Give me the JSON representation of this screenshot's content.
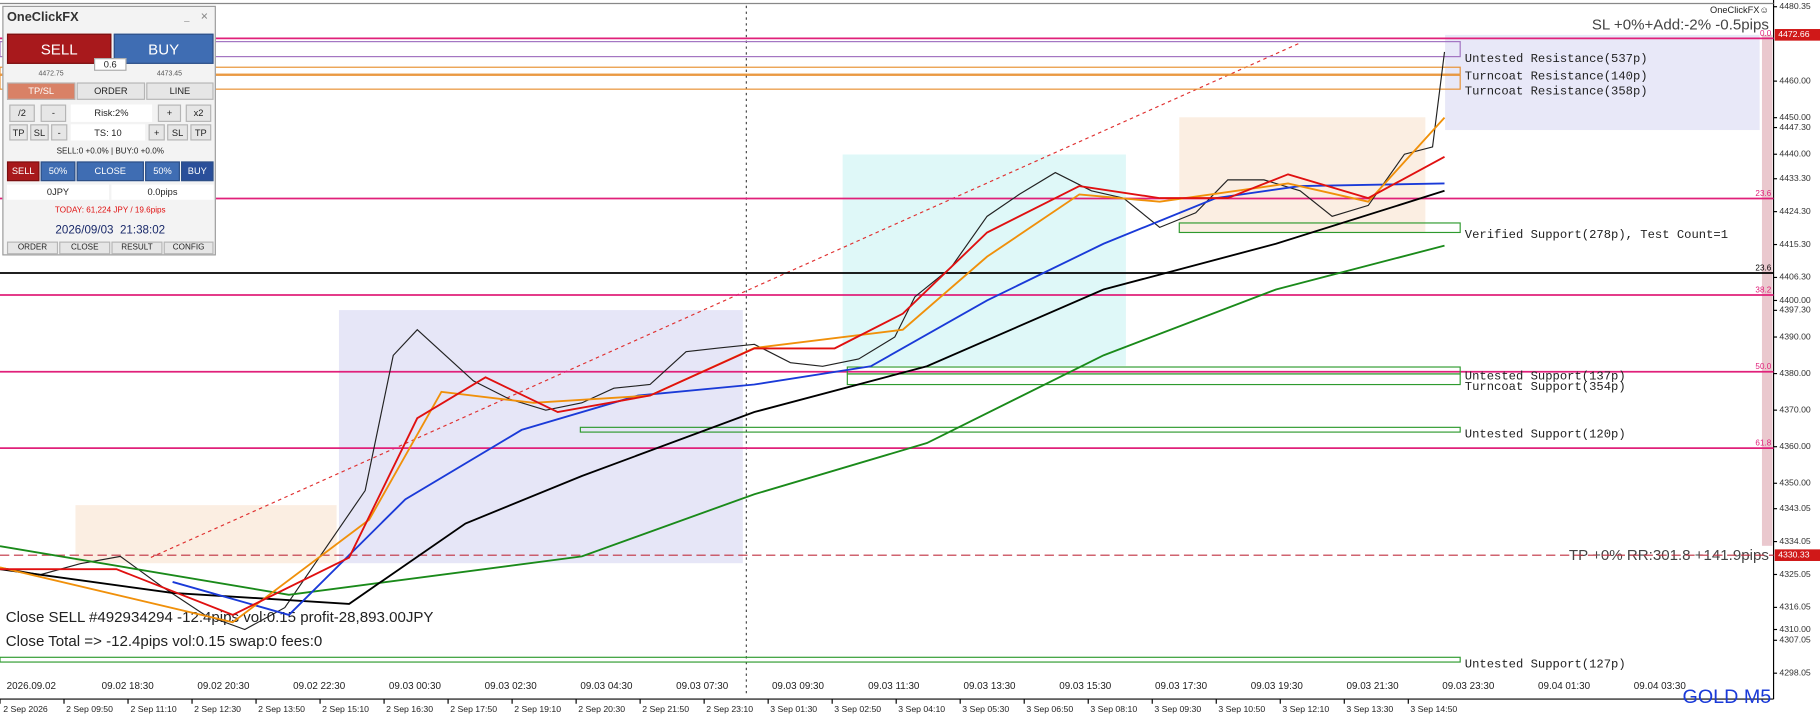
{
  "panel": {
    "title": "OneClickFX",
    "sell": "SELL",
    "buy": "BUY",
    "lot": "0.6",
    "bid": "4472.75",
    "ask": "4473.45",
    "tabs": [
      "TP/SL",
      "ORDER",
      "LINE"
    ],
    "risk_row": [
      "/2",
      "-",
      "Risk:2%",
      "+",
      "x2"
    ],
    "ts_row": [
      "TP",
      "SL",
      "-",
      "TS: 10",
      "+",
      "SL",
      "TP"
    ],
    "positions": "SELL:0 +0.0% | BUY:0 +0.0%",
    "close_row": [
      "SELL",
      "50%",
      "CLOSE",
      "50%",
      "BUY"
    ],
    "profit": "0JPY",
    "pips": "0.0pips",
    "today": "TODAY: 61,224 JPY / 19.6pips",
    "datetime": "2026/09/03  21:38:02",
    "menu": [
      "ORDER",
      "CLOSE",
      "RESULT",
      "CONFIG"
    ]
  },
  "chart_data": {
    "type": "line",
    "logo": "OneClickFX☺",
    "symbol": "GOLD M5",
    "sl_text": "SL +0%+Add:-2% -0.5pips",
    "tp_text": "TP +0% RR:301.8 +141.9pips",
    "close_lines": [
      "Close SELL #492934294 -12.4pips vol:0.15 profit-28,893.00JPY",
      "Close Total => -12.4pips vol:0.15 swap:0 fees:0"
    ],
    "ylim": [
      4291.6,
      4480.6
    ],
    "xlim": [
      0,
      442
    ],
    "yticks": [
      4480.35,
      {
        "value": 4460,
        "label": "4460.00"
      },
      {
        "value": 4450,
        "label": "4450.00"
      },
      {
        "value": 4447.3,
        "label": "4447.30"
      },
      {
        "value": 4440,
        "label": "4440.00"
      },
      {
        "value": 4433.3,
        "label": "4433.30"
      },
      {
        "value": 4424.3,
        "label": "4424.30"
      },
      {
        "value": 4415.3,
        "label": "4415.30"
      },
      {
        "value": 4406.3,
        "label": "4406.30"
      },
      {
        "value": 4400,
        "label": "4400.00"
      },
      {
        "value": 4397.3,
        "label": "4397.30"
      },
      {
        "value": 4390,
        "label": "4390.00"
      },
      {
        "value": 4380,
        "label": "4380.00"
      },
      {
        "value": 4370,
        "label": "4370.00"
      },
      {
        "value": 4360,
        "label": "4360.00"
      },
      {
        "value": 4350,
        "label": "4350.00"
      },
      {
        "value": 4343.05,
        "label": "4343.05"
      },
      {
        "value": 4334.05,
        "label": "4334.05"
      },
      {
        "value": 4325.05,
        "label": "4325.05"
      },
      {
        "value": 4316.05,
        "label": "4316.05"
      },
      {
        "value": 4310,
        "label": "4310.00"
      },
      {
        "value": 4307.05,
        "label": "4307.05"
      },
      {
        "value": 4298.05,
        "label": "4298.05"
      }
    ],
    "price_tags": [
      4472.66,
      4330.33
    ],
    "x_labels_top": [
      "2026.09.02",
      "09.02 18:30",
      "09.02 20:30",
      "09.02 22:30",
      "09.03 00:30",
      "09.03 02:30",
      "09.03 04:30",
      "09.03 07:30",
      "09.03 09:30",
      "09.03 11:30",
      "09.03 13:30",
      "09.03 15:30",
      "09.03 17:30",
      "09.03 19:30",
      "09.03 21:30",
      "09.03 23:30",
      "09.04 01:30",
      "09.04 03:30"
    ],
    "x_labels_bottom": [
      "2 Sep 2026",
      "2 Sep 09:50",
      "2 Sep 11:10",
      "2 Sep 12:30",
      "2 Sep 13:50",
      "2 Sep 15:10",
      "2 Sep 16:30",
      "2 Sep 17:50",
      "2 Sep 19:10",
      "2 Sep 20:30",
      "2 Sep 21:50",
      "2 Sep 23:10",
      "3 Sep 01:30",
      "3 Sep 02:50",
      "3 Sep 04:10",
      "3 Sep 05:30",
      "3 Sep 06:50",
      "3 Sep 08:10",
      "3 Sep 09:30",
      "3 Sep 10:50",
      "3 Sep 12:10",
      "3 Sep 13:30",
      "3 Sep 14:50"
    ],
    "fib_levels": [
      {
        "label": "0.0",
        "price": 4471.7,
        "color": "#e0207a"
      },
      {
        "label": "23.6",
        "price": 4427.9,
        "color": "#e0207a"
      },
      {
        "label": "23.6",
        "price": 4407.5,
        "color": "#000000"
      },
      {
        "label": "38.2",
        "price": 4401.5,
        "color": "#e0207a"
      },
      {
        "label": "50.0",
        "price": 4380.5,
        "color": "#e0207a"
      },
      {
        "label": "61.8",
        "price": 4359.6,
        "color": "#e0207a"
      }
    ],
    "zones": [
      {
        "label": "Untested Resistance(537p)",
        "top": 4470.8,
        "bottom": 4466.7,
        "color": "#a070c0"
      },
      {
        "label": "Turncoat Resistance(140p)",
        "top": 4463.8,
        "bottom": 4461.9,
        "color": "#e89030"
      },
      {
        "label": "Turncoat Resistance(358p)",
        "top": 4461.6,
        "bottom": 4457.8,
        "color": "#e89030"
      },
      {
        "label": "Verified Support(278p), Test Count=1",
        "top": 4421.2,
        "bottom": 4418.6,
        "color": "#2e9a2e"
      },
      {
        "label": "Untested Support(137p)",
        "top": 4381.8,
        "bottom": 4379.9,
        "color": "#2e9a2e"
      },
      {
        "label": "Turncoat Support(354p)",
        "top": 4379.9,
        "bottom": 4377.0,
        "color": "#2e9a2e"
      },
      {
        "label": "Untested Support(120p)",
        "top": 4365.3,
        "bottom": 4364.0,
        "color": "#2e9a2e"
      },
      {
        "label": "Untested Support(127p)",
        "top": 4302.4,
        "bottom": 4301.1,
        "color": "#2e9a2e"
      }
    ],
    "series": [
      {
        "color": "#222222",
        "x": [
          0,
          10,
          20,
          30,
          40,
          51,
          61,
          71,
          81,
          91,
          98,
          104,
          111,
          118,
          127,
          136,
          145,
          153,
          162,
          171,
          179,
          188,
          197,
          205,
          214,
          223,
          228,
          237,
          246,
          254,
          263,
          272,
          280,
          289,
          298,
          306,
          315,
          324,
          332,
          341,
          350,
          357,
          360
        ],
        "values": [
          4327,
          4325,
          4328,
          4330,
          4322,
          4314,
          4310,
          4316,
          4332,
          4348,
          4385,
          4392,
          4385,
          4378,
          4373,
          4370,
          4372,
          4376,
          4377,
          4386,
          4387,
          4388,
          4383,
          4382,
          4384,
          4390,
          4401,
          4409,
          4423,
          4429,
          4435,
          4430,
          4428,
          4420,
          4424,
          4433,
          4433,
          4430,
          4423,
          4426,
          4440,
          4442,
          4468
        ]
      },
      {
        "color": "#1a8a1a",
        "x": [
          0,
          72,
          145,
          188,
          231,
          275,
          318,
          360
        ],
        "values": [
          4332.8,
          4319.5,
          4330,
          4347,
          4361,
          4385,
          4403,
          4415
        ]
      },
      {
        "color": "#000000",
        "x": [
          0,
          43,
          87,
          116,
          145,
          188,
          231,
          275,
          318,
          360
        ],
        "values": [
          4326.5,
          4320,
          4317,
          4339,
          4352,
          4369.5,
          4382,
          4403,
          4415.5,
          4430
        ]
      },
      {
        "color": "#1a3ad8",
        "x": [
          43,
          72,
          101,
          130,
          159,
          188,
          217,
          246,
          275,
          303,
          324,
          360
        ],
        "values": [
          4323,
          4314,
          4345.6,
          4364.6,
          4374,
          4377,
          4382,
          4400,
          4415.5,
          4428,
          4431.3,
          4432
        ]
      },
      {
        "color": "#f0900a",
        "x": [
          0,
          58,
          92,
          110,
          133,
          162,
          188,
          225,
          246,
          269,
          289,
          321,
          341,
          360
        ],
        "values": [
          4327,
          4312,
          4340,
          4375,
          4372,
          4374,
          4387,
          4392,
          4412,
          4429,
          4427,
          4432,
          4427,
          4450
        ]
      },
      {
        "color": "#e01010",
        "x": [
          0,
          29,
          58,
          87,
          104,
          121,
          139,
          162,
          188,
          208,
          225,
          246,
          269,
          289,
          306,
          321,
          341,
          360
        ],
        "values": [
          4326.5,
          4326.5,
          4314,
          4329.7,
          4367.8,
          4379,
          4369.5,
          4374,
          4386.9,
          4386.9,
          4396.4,
          4418.6,
          4431.3,
          4428,
          4428,
          4434.5,
          4428,
          4439.3
        ]
      }
    ]
  }
}
